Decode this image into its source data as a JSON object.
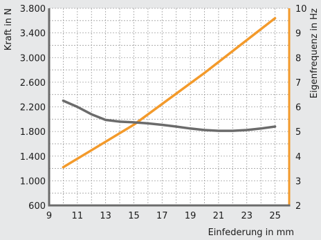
{
  "chart_data": {
    "type": "line",
    "title": "",
    "xlabel": "Einfederung in mm",
    "ylabel_left": "Kraft in N",
    "ylabel_right": "Eigenfrequenz in Hz",
    "xlim": [
      9,
      26
    ],
    "ylim_left": [
      600,
      3800
    ],
    "ylim_right": [
      2,
      10
    ],
    "x_ticks": [
      9,
      11,
      13,
      15,
      17,
      19,
      21,
      23,
      25
    ],
    "x_tick_labels": [
      "9",
      "11",
      "13",
      "15",
      "17",
      "19",
      "21",
      "23",
      "25"
    ],
    "y_left_ticks": [
      600,
      1000,
      1400,
      1800,
      2200,
      2600,
      3000,
      3400,
      3800
    ],
    "y_left_tick_labels": [
      "600",
      "1.000",
      "1.400",
      "1.800",
      "2.200",
      "2.600",
      "3.000",
      "3.400",
      "3.800"
    ],
    "y_right_ticks": [
      2,
      3,
      4,
      5,
      6,
      7,
      8,
      9,
      10
    ],
    "y_right_tick_labels": [
      "2",
      "3",
      "4",
      "5",
      "6",
      "7",
      "8",
      "9",
      "10"
    ],
    "grid": true,
    "series": [
      {
        "axis": "left",
        "color": "#f39a2b",
        "points": [
          [
            10,
            1220
          ],
          [
            15,
            1910
          ],
          [
            20,
            2750
          ],
          [
            25,
            3640
          ]
        ]
      },
      {
        "axis": "right",
        "color": "#6b6b6b",
        "points": [
          [
            10,
            6.25
          ],
          [
            11,
            6.0
          ],
          [
            12,
            5.7
          ],
          [
            13,
            5.47
          ],
          [
            14,
            5.4
          ],
          [
            15,
            5.37
          ],
          [
            16,
            5.33
          ],
          [
            17,
            5.27
          ],
          [
            18,
            5.2
          ],
          [
            19,
            5.12
          ],
          [
            20,
            5.06
          ],
          [
            21,
            5.03
          ],
          [
            22,
            5.03
          ],
          [
            23,
            5.06
          ],
          [
            24,
            5.12
          ],
          [
            25,
            5.2
          ]
        ]
      }
    ],
    "colors": {
      "background": "#e7e8e9",
      "plot_background": "#ffffff",
      "grid": "#a0a0a0",
      "axis_left": "#6b6b6b",
      "axis_right": "#f39a2b"
    }
  }
}
